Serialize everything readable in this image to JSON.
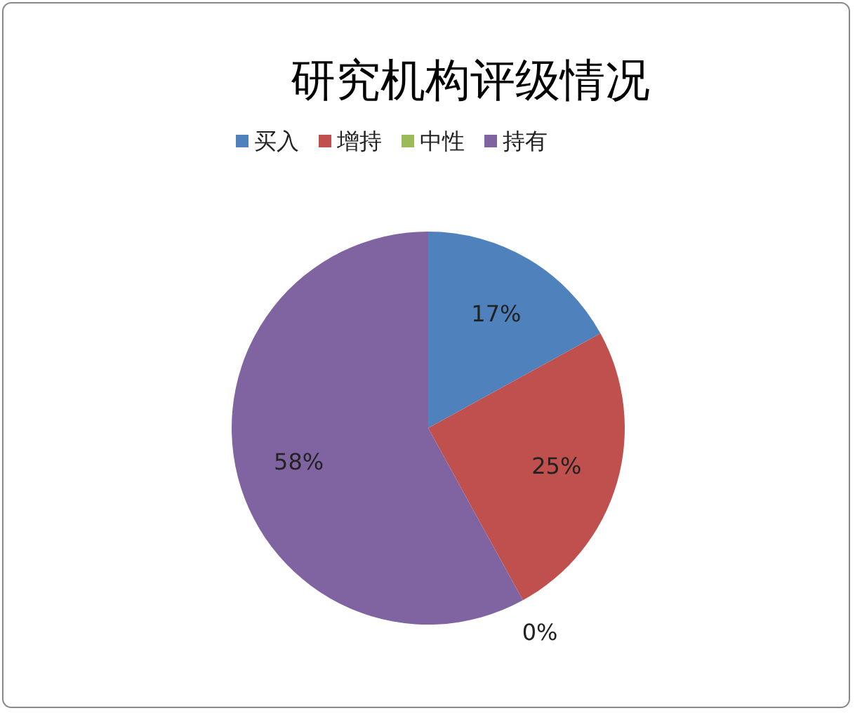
{
  "chart_data": {
    "type": "pie",
    "title": "研究机构评级情况",
    "categories": [
      "买入",
      "增持",
      "中性",
      "持有"
    ],
    "values": [
      17,
      25,
      0,
      58
    ],
    "colors": [
      "#4f81bd",
      "#c0504d",
      "#9bbb59",
      "#8064a2"
    ],
    "value_labels": [
      "17%",
      "25%",
      "0%",
      "58%"
    ],
    "legend": "top"
  }
}
